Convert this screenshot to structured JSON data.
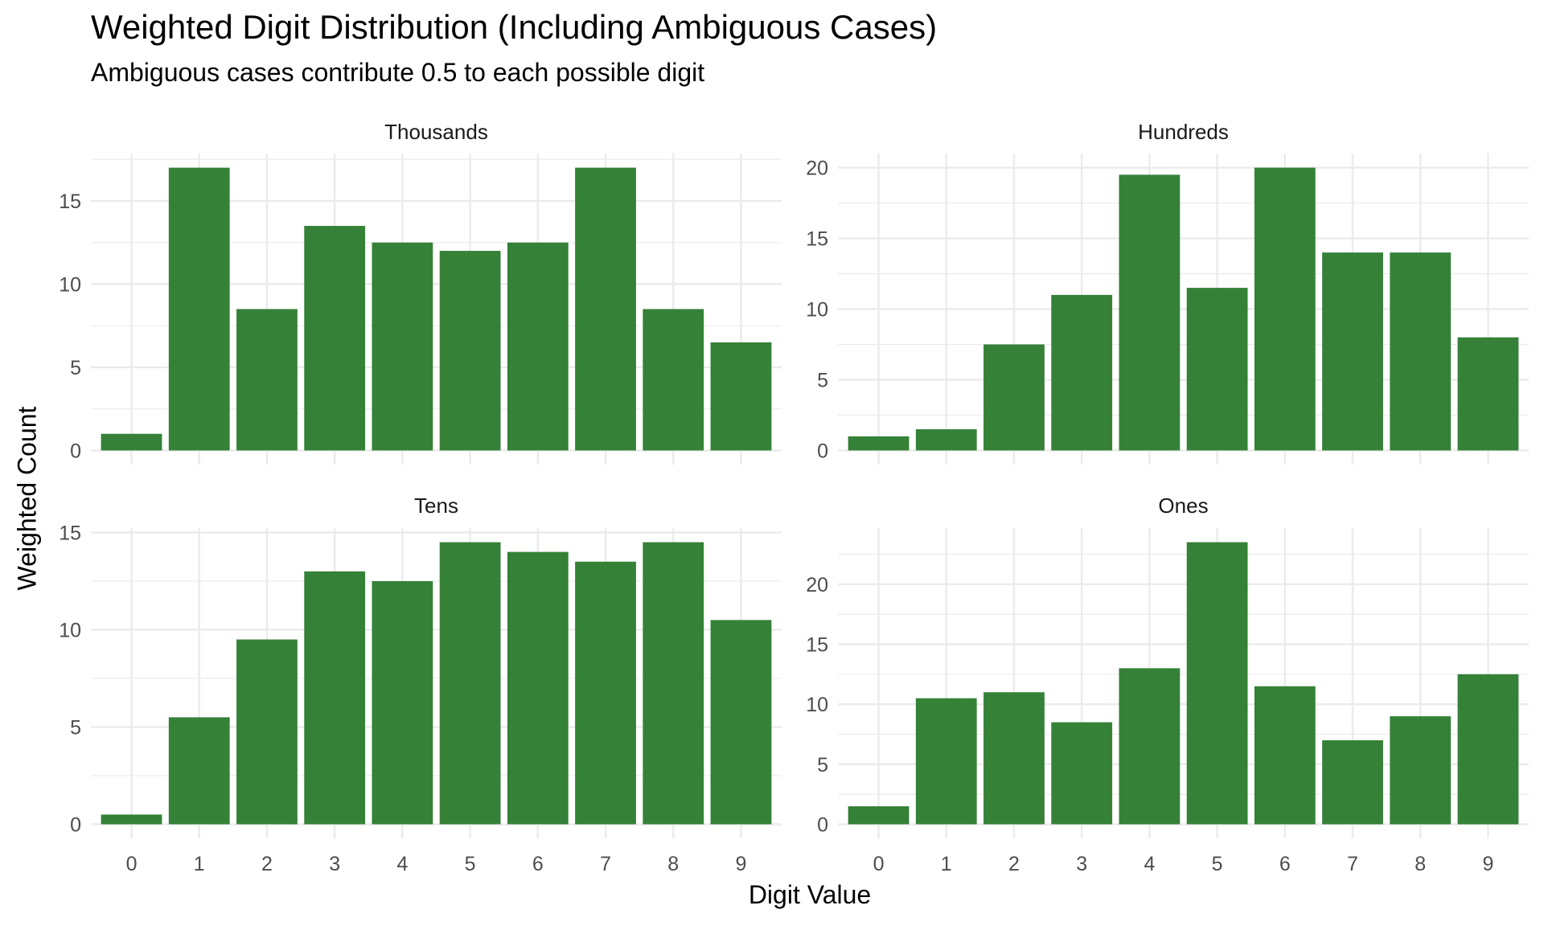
{
  "chart_data": {
    "type": "bar",
    "title": "Weighted Digit Distribution (Including Ambiguous Cases)",
    "subtitle": "Ambiguous cases contribute 0.5 to each possible digit",
    "xlabel": "Digit Value",
    "ylabel": "Weighted Count",
    "bar_color": "#2e7d32",
    "grid": true,
    "legend": "none",
    "categories": [
      "0",
      "1",
      "2",
      "3",
      "4",
      "5",
      "6",
      "7",
      "8",
      "9"
    ],
    "facets": [
      {
        "name": "Thousands",
        "values": [
          1,
          17,
          8.5,
          13.5,
          12.5,
          12,
          12.5,
          17,
          8.5,
          6.5
        ],
        "yticks": [
          0,
          5,
          10,
          15
        ],
        "ylim": [
          -0.85,
          17.85
        ]
      },
      {
        "name": "Hundreds",
        "values": [
          1,
          1.5,
          7.5,
          11,
          19.5,
          11.5,
          20,
          14,
          14,
          8
        ],
        "yticks": [
          0,
          5,
          10,
          15,
          20
        ],
        "ylim": [
          -1,
          21
        ]
      },
      {
        "name": "Tens",
        "values": [
          0.5,
          5.5,
          9.5,
          13,
          12.5,
          14.5,
          14,
          13.5,
          14.5,
          10.5
        ],
        "yticks": [
          0,
          5,
          10,
          15
        ],
        "ylim": [
          -0.725,
          15.225
        ]
      },
      {
        "name": "Ones",
        "values": [
          1.5,
          10.5,
          11,
          8.5,
          13,
          23.5,
          11.5,
          7,
          9,
          12.5
        ],
        "yticks": [
          0,
          5,
          10,
          15,
          20
        ],
        "ylim": [
          -1.175,
          24.675
        ]
      }
    ]
  }
}
